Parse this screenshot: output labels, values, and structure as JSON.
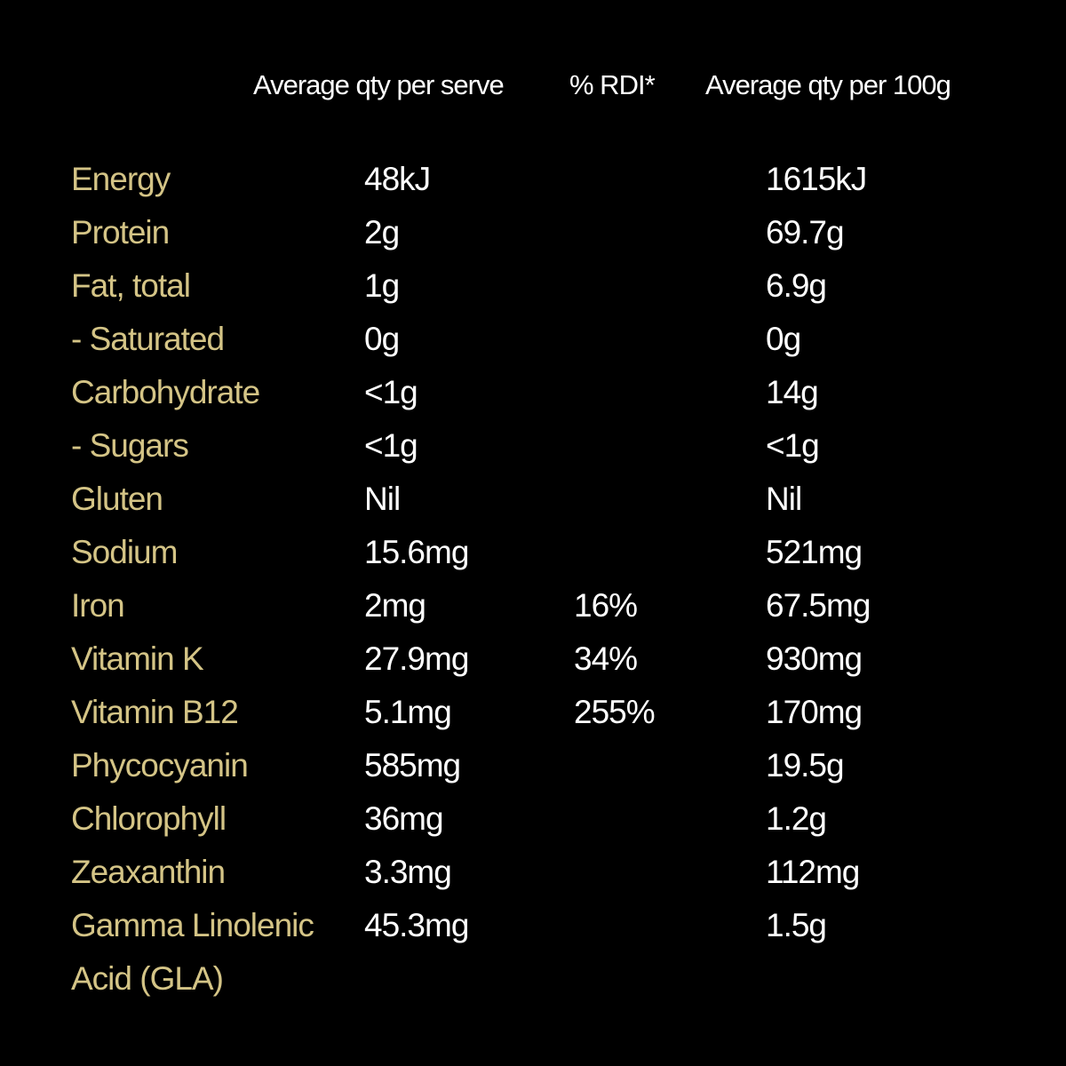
{
  "colors": {
    "background": "#000000",
    "label": "#d4c486",
    "value": "#ffffff"
  },
  "header": {
    "per_serve": "Average qty per serve",
    "rdi": "% RDI*",
    "per_100g": "Average qty per 100g"
  },
  "rows": [
    {
      "label": "Energy",
      "serve": "48kJ",
      "rdi": "",
      "per100": "1615kJ"
    },
    {
      "label": "Protein",
      "serve": "2g",
      "rdi": "",
      "per100": "69.7g"
    },
    {
      "label": "Fat, total",
      "serve": "1g",
      "rdi": "",
      "per100": "6.9g"
    },
    {
      "label": "- Saturated",
      "serve": "0g",
      "rdi": "",
      "per100": "0g"
    },
    {
      "label": "Carbohydrate",
      "serve": "<1g",
      "rdi": "",
      "per100": "14g"
    },
    {
      "label": "- Sugars",
      "serve": "<1g",
      "rdi": "",
      "per100": "<1g"
    },
    {
      "label": "Gluten",
      "serve": "Nil",
      "rdi": "",
      "per100": "Nil"
    },
    {
      "label": "Sodium",
      "serve": "15.6mg",
      "rdi": "",
      "per100": "521mg"
    },
    {
      "label": "Iron",
      "serve": "2mg",
      "rdi": "16%",
      "per100": "67.5mg"
    },
    {
      "label": "Vitamin K",
      "serve": "27.9mg",
      "rdi": "34%",
      "per100": "930mg"
    },
    {
      "label": "Vitamin B12",
      "serve": "5.1mg",
      "rdi": "255%",
      "per100": "170mg"
    },
    {
      "label": "Phycocyanin",
      "serve": "585mg",
      "rdi": "",
      "per100": "19.5g"
    },
    {
      "label": "Chlorophyll",
      "serve": "36mg",
      "rdi": "",
      "per100": "1.2g"
    },
    {
      "label": "Zeaxanthin",
      "serve": "3.3mg",
      "rdi": "",
      "per100": "112mg"
    },
    {
      "label": "Gamma Linolenic Acid (GLA)",
      "serve": "45.3mg",
      "rdi": "",
      "per100": "1.5g"
    }
  ]
}
